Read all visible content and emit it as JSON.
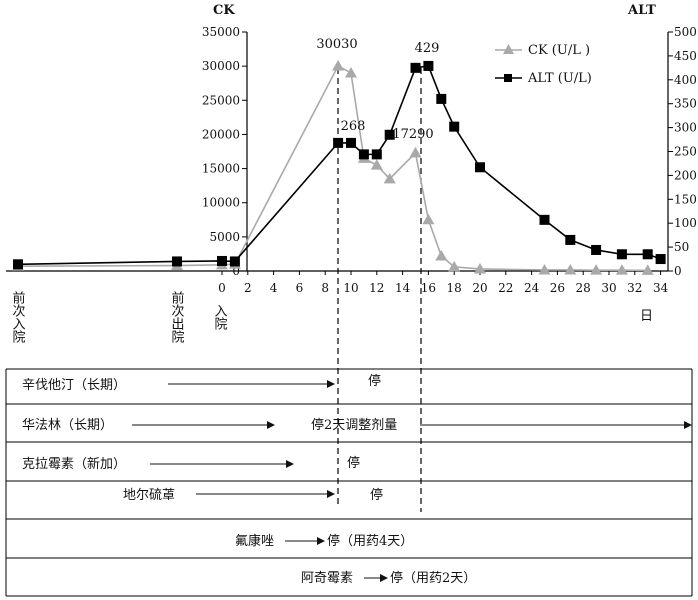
{
  "chart_data": {
    "type": "line",
    "left_axis_title": "CK",
    "right_axis_title": "ALT",
    "x_unit_label": "日",
    "left_ylim": [
      0,
      35000
    ],
    "right_ylim": [
      0,
      500
    ],
    "left_yticks": [
      "0",
      "5000",
      "10000",
      "15000",
      "20000",
      "25000",
      "30000",
      "35000"
    ],
    "right_yticks": [
      "0",
      "50",
      "100",
      "150",
      "200",
      "250",
      "300",
      "350",
      "400",
      "450",
      "500"
    ],
    "xticks": [
      "0",
      "2",
      "4",
      "6",
      "8",
      "10",
      "12",
      "14",
      "16",
      "18",
      "20",
      "22",
      "24",
      "26",
      "28",
      "30",
      "32",
      "34"
    ],
    "x_special_labels": [
      {
        "text": "前次入院"
      },
      {
        "text": "前次出院"
      },
      {
        "text": "入院"
      }
    ],
    "legend_position": "top-right",
    "series": [
      {
        "name": "CK (U/L )",
        "axis": "left",
        "color": "#a9a9a9",
        "marker": "triangle",
        "points": [
          [
            "前次入院",
            700
          ],
          [
            "前次出院",
            800
          ],
          [
            0,
            900
          ],
          [
            1,
            1000
          ],
          [
            9,
            30030
          ],
          [
            10,
            29000
          ],
          [
            11,
            16500
          ],
          [
            12,
            15500
          ],
          [
            13,
            13500
          ],
          [
            15,
            17290
          ],
          [
            16,
            7500
          ],
          [
            17,
            2200
          ],
          [
            18,
            600
          ],
          [
            20,
            300
          ],
          [
            25,
            150
          ],
          [
            27,
            150
          ],
          [
            29,
            120
          ],
          [
            31,
            120
          ],
          [
            33,
            100
          ]
        ]
      },
      {
        "name": "ALT (U/L)",
        "axis": "right",
        "color": "#000000",
        "marker": "square",
        "points": [
          [
            "前次入院",
            14
          ],
          [
            "前次出院",
            20
          ],
          [
            0,
            21
          ],
          [
            1,
            20
          ],
          [
            9,
            268
          ],
          [
            10,
            268
          ],
          [
            11,
            244
          ],
          [
            12,
            244
          ],
          [
            13,
            285
          ],
          [
            15,
            425
          ],
          [
            16,
            429
          ],
          [
            17,
            360
          ],
          [
            18,
            302
          ],
          [
            20,
            217
          ],
          [
            25,
            107
          ],
          [
            27,
            65
          ],
          [
            29,
            44
          ],
          [
            31,
            35
          ],
          [
            33,
            35
          ],
          [
            34,
            25
          ]
        ]
      }
    ],
    "annotations": [
      "30030",
      "268",
      "17290",
      "429"
    ]
  },
  "drugs": [
    {
      "name": "辛伐他汀（长期）",
      "status": "停"
    },
    {
      "name": "华法林（长期）",
      "status": "停2天调整剂量"
    },
    {
      "name": "克拉霉素（新加）",
      "status": "停"
    },
    {
      "name": "地尔硫䓬",
      "status": "停"
    },
    {
      "name": "氟康唑",
      "status": "停（用药4天）"
    },
    {
      "name": "阿奇霉素",
      "status": "停（用药2天）"
    }
  ]
}
